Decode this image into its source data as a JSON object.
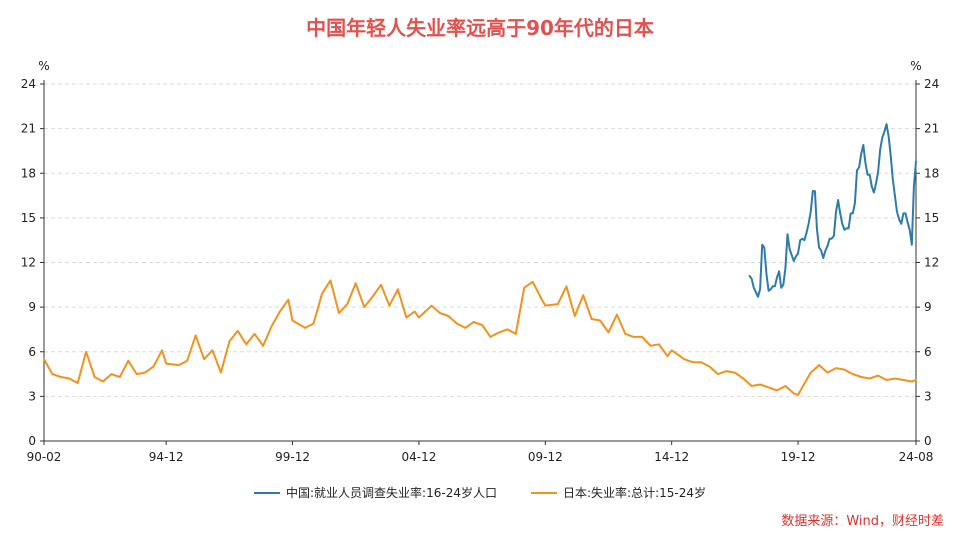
{
  "chart_data": {
    "type": "line",
    "title": "中国年轻人失业率远高于90年代的日本",
    "ylabel_left": "%",
    "ylabel_right": "%",
    "ylim": [
      0,
      24
    ],
    "yticks": [
      0,
      3,
      6,
      9,
      12,
      15,
      18,
      21,
      24
    ],
    "x_tick_labels": [
      "90-02",
      "94-12",
      "99-12",
      "04-12",
      "09-12",
      "14-12",
      "19-12",
      "24-08"
    ],
    "grid": true,
    "legend_position": "bottom",
    "series": [
      {
        "name": "中国:就业人员调查失业率:16-24岁人口",
        "color": "#2e7bab",
        "points": [
          [
            "2018-01",
            11.1
          ],
          [
            "2018-02",
            10.9
          ],
          [
            "2018-03",
            10.3
          ],
          [
            "2018-04",
            10.0
          ],
          [
            "2018-05",
            9.7
          ],
          [
            "2018-06",
            10.2
          ],
          [
            "2018-07",
            13.2
          ],
          [
            "2018-08",
            13.0
          ],
          [
            "2018-09",
            11.2
          ],
          [
            "2018-10",
            10.1
          ],
          [
            "2018-11",
            10.2
          ],
          [
            "2018-12",
            10.4
          ],
          [
            "2019-01",
            10.4
          ],
          [
            "2019-02",
            11.0
          ],
          [
            "2019-03",
            11.4
          ],
          [
            "2019-04",
            10.3
          ],
          [
            "2019-05",
            10.5
          ],
          [
            "2019-06",
            11.6
          ],
          [
            "2019-07",
            13.9
          ],
          [
            "2019-08",
            12.9
          ],
          [
            "2019-09",
            12.5
          ],
          [
            "2019-10",
            12.1
          ],
          [
            "2019-11",
            12.4
          ],
          [
            "2019-12",
            12.6
          ],
          [
            "2020-01",
            13.5
          ],
          [
            "2020-02",
            13.6
          ],
          [
            "2020-03",
            13.5
          ],
          [
            "2020-04",
            14.0
          ],
          [
            "2020-05",
            14.6
          ],
          [
            "2020-06",
            15.4
          ],
          [
            "2020-07",
            16.8
          ],
          [
            "2020-08",
            16.8
          ],
          [
            "2020-09",
            14.2
          ],
          [
            "2020-10",
            13.0
          ],
          [
            "2020-11",
            12.8
          ],
          [
            "2020-12",
            12.3
          ],
          [
            "2021-01",
            12.8
          ],
          [
            "2021-02",
            13.1
          ],
          [
            "2021-03",
            13.6
          ],
          [
            "2021-04",
            13.6
          ],
          [
            "2021-05",
            13.8
          ],
          [
            "2021-06",
            15.4
          ],
          [
            "2021-07",
            16.2
          ],
          [
            "2021-08",
            15.3
          ],
          [
            "2021-09",
            14.6
          ],
          [
            "2021-10",
            14.2
          ],
          [
            "2021-11",
            14.3
          ],
          [
            "2021-12",
            14.3
          ],
          [
            "2022-01",
            15.3
          ],
          [
            "2022-02",
            15.3
          ],
          [
            "2022-03",
            16.0
          ],
          [
            "2022-04",
            18.2
          ],
          [
            "2022-05",
            18.4
          ],
          [
            "2022-06",
            19.3
          ],
          [
            "2022-07",
            19.9
          ],
          [
            "2022-08",
            18.7
          ],
          [
            "2022-09",
            17.9
          ],
          [
            "2022-10",
            17.9
          ],
          [
            "2022-11",
            17.1
          ],
          [
            "2022-12",
            16.7
          ],
          [
            "2023-01",
            17.3
          ],
          [
            "2023-02",
            18.1
          ],
          [
            "2023-03",
            19.6
          ],
          [
            "2023-04",
            20.4
          ],
          [
            "2023-05",
            20.8
          ],
          [
            "2023-06",
            21.3
          ],
          [
            "2023-07",
            20.5
          ],
          [
            "2023-08",
            19.2
          ],
          [
            "2023-09",
            17.6
          ],
          [
            "2023-10",
            16.5
          ],
          [
            "2023-11",
            15.4
          ],
          [
            "2023-12",
            14.9
          ],
          [
            "2024-01",
            14.6
          ],
          [
            "2024-02",
            15.3
          ],
          [
            "2024-03",
            15.3
          ],
          [
            "2024-04",
            14.7
          ],
          [
            "2024-05",
            14.2
          ],
          [
            "2024-06",
            13.2
          ],
          [
            "2024-07",
            17.1
          ],
          [
            "2024-08",
            18.8
          ]
        ]
      },
      {
        "name": "日本:失业率:总计:15-24岁",
        "color": "#f0921e",
        "points": [
          [
            "1990-02",
            5.5
          ],
          [
            "1990-06",
            4.5
          ],
          [
            "1990-10",
            4.3
          ],
          [
            "1991-02",
            4.2
          ],
          [
            "1991-06",
            3.9
          ],
          [
            "1991-10",
            6.0
          ],
          [
            "1992-02",
            4.3
          ],
          [
            "1992-06",
            4.0
          ],
          [
            "1992-10",
            4.5
          ],
          [
            "1993-02",
            4.3
          ],
          [
            "1993-06",
            5.4
          ],
          [
            "1993-10",
            4.5
          ],
          [
            "1994-02",
            4.6
          ],
          [
            "1994-06",
            5.0
          ],
          [
            "1994-10",
            6.1
          ],
          [
            "1994-12",
            5.2
          ],
          [
            "1995-06",
            5.1
          ],
          [
            "1995-10",
            5.4
          ],
          [
            "1996-02",
            7.1
          ],
          [
            "1996-06",
            5.5
          ],
          [
            "1996-10",
            6.1
          ],
          [
            "1997-02",
            4.6
          ],
          [
            "1997-06",
            6.7
          ],
          [
            "1997-10",
            7.4
          ],
          [
            "1998-02",
            6.5
          ],
          [
            "1998-06",
            7.2
          ],
          [
            "1998-10",
            6.4
          ],
          [
            "1999-02",
            7.7
          ],
          [
            "1999-06",
            8.7
          ],
          [
            "1999-10",
            9.5
          ],
          [
            "1999-12",
            8.1
          ],
          [
            "2000-06",
            7.6
          ],
          [
            "2000-10",
            7.9
          ],
          [
            "2001-02",
            9.9
          ],
          [
            "2001-06",
            10.8
          ],
          [
            "2001-10",
            8.6
          ],
          [
            "2002-02",
            9.2
          ],
          [
            "2002-06",
            10.6
          ],
          [
            "2002-10",
            9.0
          ],
          [
            "2003-02",
            9.7
          ],
          [
            "2003-06",
            10.5
          ],
          [
            "2003-10",
            9.1
          ],
          [
            "2004-02",
            10.2
          ],
          [
            "2004-06",
            8.3
          ],
          [
            "2004-10",
            8.7
          ],
          [
            "2004-12",
            8.3
          ],
          [
            "2005-06",
            9.1
          ],
          [
            "2005-10",
            8.6
          ],
          [
            "2006-02",
            8.4
          ],
          [
            "2006-06",
            7.9
          ],
          [
            "2006-10",
            7.6
          ],
          [
            "2007-02",
            8.0
          ],
          [
            "2007-06",
            7.8
          ],
          [
            "2007-10",
            7.0
          ],
          [
            "2008-02",
            7.3
          ],
          [
            "2008-06",
            7.5
          ],
          [
            "2008-10",
            7.2
          ],
          [
            "2009-02",
            10.3
          ],
          [
            "2009-06",
            10.7
          ],
          [
            "2009-10",
            9.6
          ],
          [
            "2009-12",
            9.1
          ],
          [
            "2010-06",
            9.2
          ],
          [
            "2010-10",
            10.4
          ],
          [
            "2011-02",
            8.4
          ],
          [
            "2011-06",
            9.8
          ],
          [
            "2011-10",
            8.2
          ],
          [
            "2012-02",
            8.1
          ],
          [
            "2012-06",
            7.3
          ],
          [
            "2012-10",
            8.5
          ],
          [
            "2013-02",
            7.2
          ],
          [
            "2013-06",
            7.0
          ],
          [
            "2013-10",
            7.0
          ],
          [
            "2014-02",
            6.4
          ],
          [
            "2014-06",
            6.5
          ],
          [
            "2014-10",
            5.7
          ],
          [
            "2014-12",
            6.1
          ],
          [
            "2015-06",
            5.5
          ],
          [
            "2015-10",
            5.3
          ],
          [
            "2016-02",
            5.3
          ],
          [
            "2016-06",
            5.0
          ],
          [
            "2016-10",
            4.5
          ],
          [
            "2017-02",
            4.7
          ],
          [
            "2017-06",
            4.6
          ],
          [
            "2017-10",
            4.2
          ],
          [
            "2018-02",
            3.7
          ],
          [
            "2018-06",
            3.8
          ],
          [
            "2018-10",
            3.6
          ],
          [
            "2019-02",
            3.4
          ],
          [
            "2019-06",
            3.7
          ],
          [
            "2019-10",
            3.2
          ],
          [
            "2019-12",
            3.1
          ],
          [
            "2020-06",
            4.6
          ],
          [
            "2020-10",
            5.1
          ],
          [
            "2021-02",
            4.6
          ],
          [
            "2021-06",
            4.9
          ],
          [
            "2021-10",
            4.8
          ],
          [
            "2022-02",
            4.5
          ],
          [
            "2022-06",
            4.3
          ],
          [
            "2022-10",
            4.2
          ],
          [
            "2023-02",
            4.4
          ],
          [
            "2023-06",
            4.1
          ],
          [
            "2023-10",
            4.2
          ],
          [
            "2024-02",
            4.1
          ],
          [
            "2024-06",
            4.0
          ],
          [
            "2024-08",
            4.1
          ]
        ]
      }
    ]
  },
  "source_note": "数据来源：Wind，财经时差"
}
